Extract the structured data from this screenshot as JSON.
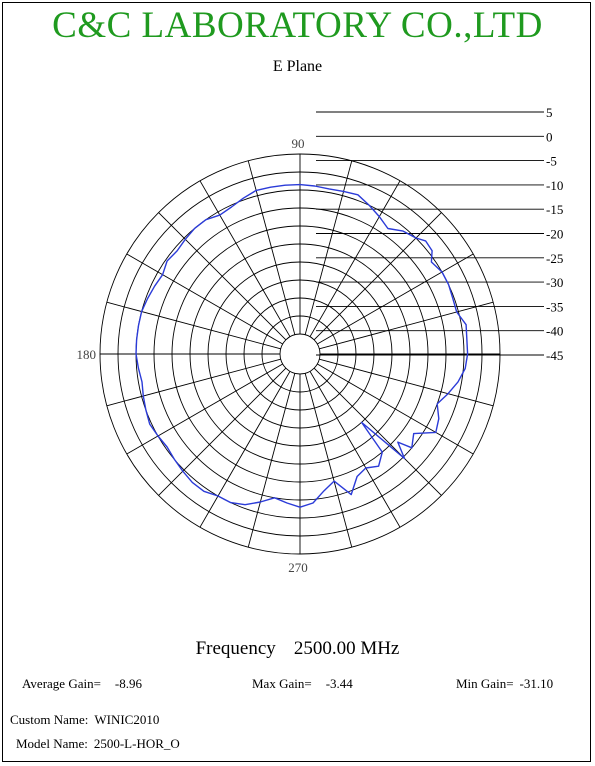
{
  "header": {
    "company": "C&C LABORATORY CO.,LTD",
    "plane": "E Plane"
  },
  "chart_data": {
    "type": "polar",
    "radial_ticks": [
      "5",
      "0",
      "-5",
      "-10",
      "-15",
      "-20",
      "-25",
      "-30",
      "-35",
      "-40",
      "-45"
    ],
    "rmax": 5,
    "rmin": -45,
    "angular_labels": [
      {
        "angle": 90,
        "text": "90"
      },
      {
        "angle": 180,
        "text": "180"
      },
      {
        "angle": 270,
        "text": "270"
      }
    ],
    "spoke_step_deg": 15,
    "line_color": "#2b3bd8",
    "series": [
      {
        "angles": [
          0,
          10,
          15,
          20,
          25,
          30,
          35,
          38,
          42,
          45,
          50,
          55,
          60,
          65,
          70,
          75,
          80,
          85,
          90,
          95,
          100,
          105,
          110,
          115,
          120,
          125,
          130,
          135,
          140,
          145,
          150,
          155,
          160,
          165,
          170,
          175,
          180,
          185,
          190,
          195,
          200,
          205,
          210,
          215,
          220,
          225,
          230,
          235,
          240,
          245,
          250,
          255,
          260,
          265,
          270,
          275,
          280,
          285,
          290,
          295,
          300,
          305,
          310,
          312,
          315,
          318,
          320,
          325,
          330,
          335,
          340,
          345,
          350,
          355
        ],
        "values": [
          -4,
          -3.7,
          -5.5,
          -5.4,
          -5,
          -5,
          -6,
          -4,
          -3.6,
          -5,
          -6,
          -8,
          -6.5,
          -5,
          -3.5,
          -3.8,
          -4,
          -3.7,
          -3.5,
          -3.5,
          -3.5,
          -3.5,
          -4.5,
          -5.5,
          -6,
          -5,
          -5,
          -5.5,
          -6,
          -5.5,
          -6.5,
          -6,
          -5.5,
          -5,
          -5,
          -5,
          -5,
          -5.5,
          -6,
          -5.5,
          -5,
          -4.5,
          -5,
          -5.5,
          -5,
          -4.5,
          -4,
          -4,
          -5,
          -5,
          -6,
          -8,
          -10,
          -9,
          -8,
          -9,
          -12,
          -14,
          -9,
          -13,
          -14,
          -12.5,
          -15,
          -25,
          -9.5,
          -14,
          -10,
          -12,
          -7,
          -8,
          -10,
          -8,
          -6,
          -4.5
        ]
      }
    ]
  },
  "footer": {
    "frequency_label": "Frequency",
    "frequency_value": "2500.00 MHz",
    "average_gain_label": "Average Gain=",
    "average_gain_value": "-8.96",
    "max_gain_label": "Max Gain=",
    "max_gain_value": "-3.44",
    "min_gain_label": "Min Gain=",
    "min_gain_value": "-31.10",
    "custom_name_label": "Custom Name:",
    "custom_name_value": "WINIC2010",
    "model_name_label": "Model Name:",
    "model_name_value": "2500-L-HOR_O"
  }
}
